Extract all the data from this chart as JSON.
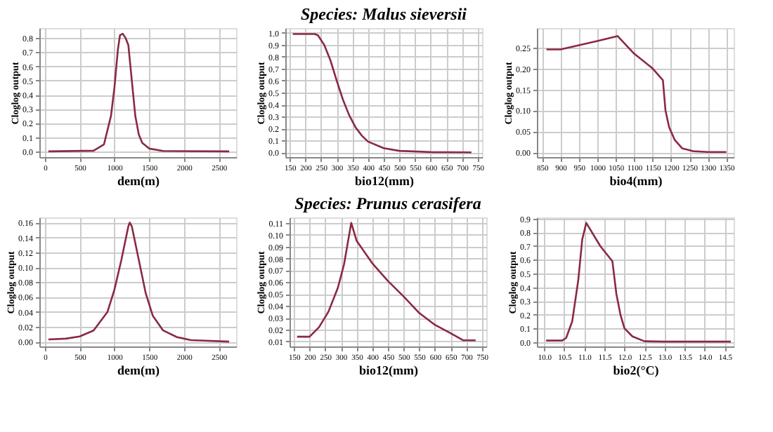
{
  "chart_data": [
    {
      "type": "line",
      "xlabel": "dem(m)",
      "ylabel": "Cloglog output",
      "grid": true,
      "x": [
        50,
        700,
        850,
        950,
        1000,
        1050,
        1080,
        1120,
        1160,
        1200,
        1250,
        1300,
        1350,
        1400,
        1500,
        1700,
        2650
      ],
      "series": [
        {
          "color": "#8b2942",
          "values": [
            0,
            0.005,
            0.05,
            0.25,
            0.45,
            0.72,
            0.82,
            0.83,
            0.8,
            0.75,
            0.5,
            0.25,
            0.12,
            0.06,
            0.02,
            0.003,
            0
          ]
        }
      ],
      "xlim": [
        -80,
        2750
      ],
      "ylim": [
        -0.04,
        0.87
      ],
      "xticks": [
        0,
        500,
        1000,
        1500,
        2000,
        2500
      ],
      "yticks": [
        {
          "value": 0,
          "label": "0.0"
        },
        0.1,
        0.2,
        0.3,
        0.4,
        0.5,
        0.6,
        0.7,
        0.8
      ]
    },
    {
      "type": "line",
      "title": "Species: Malus sieversii",
      "xlabel": "bio12(mm)",
      "ylabel": "Cloglog output",
      "grid": true,
      "x": [
        160,
        230,
        240,
        260,
        280,
        300,
        320,
        340,
        360,
        380,
        400,
        450,
        500,
        600,
        730
      ],
      "series": [
        {
          "color": "#8b2942",
          "values": [
            0.99,
            0.99,
            0.98,
            0.9,
            0.77,
            0.6,
            0.44,
            0.31,
            0.21,
            0.14,
            0.09,
            0.035,
            0.012,
            0.002,
            0
          ]
        }
      ],
      "xlim": [
        136,
        764
      ],
      "ylim": [
        -0.04,
        1.04
      ],
      "xticks": [
        150,
        200,
        250,
        300,
        350,
        400,
        450,
        500,
        550,
        600,
        650,
        700,
        750
      ],
      "yticks": [
        {
          "value": 0,
          "label": "0.0"
        },
        0.1,
        0.2,
        0.3,
        0.4,
        0.5,
        0.6,
        0.7,
        0.8,
        0.9,
        {
          "value": 1,
          "label": "1.0"
        }
      ]
    },
    {
      "type": "line",
      "xlabel": "bio4(mm)",
      "ylabel": "Cloglog output",
      "grid": true,
      "x": [
        862,
        900,
        1000,
        1055,
        1100,
        1150,
        1178,
        1185,
        1195,
        1210,
        1230,
        1260,
        1300,
        1350
      ],
      "series": [
        {
          "color": "#8b2942",
          "values": [
            0.245,
            0.245,
            0.265,
            0.277,
            0.235,
            0.2,
            0.172,
            0.1,
            0.06,
            0.03,
            0.01,
            0.003,
            0.001,
            0.001
          ]
        }
      ],
      "xlim": [
        836,
        1370
      ],
      "ylim": [
        -0.011,
        0.296
      ],
      "xticks": [
        850,
        900,
        950,
        1000,
        1050,
        1100,
        1150,
        1200,
        1250,
        1300,
        1350
      ],
      "yticks": [
        {
          "value": 0,
          "label": "0.00"
        },
        0.05,
        {
          "value": 0.1,
          "label": "0.10"
        },
        0.15,
        {
          "value": 0.2,
          "label": "0.20"
        },
        0.25
      ]
    },
    {
      "type": "line",
      "xlabel": "dem(m)",
      "ylabel": "Cloglog output",
      "grid": true,
      "x": [
        50,
        300,
        500,
        700,
        900,
        1000,
        1100,
        1200,
        1220,
        1250,
        1350,
        1450,
        1550,
        1700,
        1900,
        2100,
        2650
      ],
      "series": [
        {
          "color": "#8b2942",
          "values": [
            0.003,
            0.004,
            0.007,
            0.015,
            0.04,
            0.07,
            0.11,
            0.155,
            0.16,
            0.155,
            0.11,
            0.065,
            0.035,
            0.015,
            0.006,
            0.002,
            0
          ]
        }
      ],
      "xlim": [
        -80,
        2750
      ],
      "ylim": [
        -0.0065,
        0.167
      ],
      "xticks": [
        0,
        500,
        1000,
        1500,
        2000,
        2500
      ],
      "yticks": [
        {
          "value": 0,
          "label": "0.00"
        },
        0.02,
        0.04,
        0.06,
        0.08,
        {
          "value": 0.1,
          "label": "0.10"
        },
        0.12,
        0.14,
        0.16
      ]
    },
    {
      "type": "line",
      "title": "Species: Prunus cerasifera",
      "xlabel": "bio12(mm)",
      "ylabel": "Cloglog output",
      "grid": true,
      "x": [
        160,
        200,
        230,
        260,
        290,
        310,
        333,
        350,
        400,
        450,
        500,
        550,
        600,
        650,
        690,
        730
      ],
      "series": [
        {
          "color": "#8b2942",
          "values": [
            0.014,
            0.014,
            0.022,
            0.035,
            0.055,
            0.075,
            0.11,
            0.095,
            0.076,
            0.061,
            0.048,
            0.034,
            0.024,
            0.017,
            0.011,
            0.011
          ]
        }
      ],
      "xlim": [
        136,
        764
      ],
      "ylim": [
        0.0058,
        0.1146
      ],
      "xticks": [
        150,
        200,
        250,
        300,
        350,
        400,
        450,
        500,
        550,
        600,
        650,
        700,
        750
      ],
      "yticks": [
        0.01,
        0.02,
        0.03,
        0.04,
        0.05,
        0.06,
        0.07,
        0.08,
        0.09,
        {
          "value": 0.1,
          "label": "0.10"
        },
        0.11
      ]
    },
    {
      "type": "line",
      "xlabel": "bio2(°C)",
      "ylabel": "Cloglog output",
      "grid": true,
      "x": [
        10.05,
        10.45,
        10.55,
        10.7,
        10.85,
        10.95,
        11.05,
        11.4,
        11.7,
        11.8,
        11.9,
        12.0,
        12.2,
        12.5,
        13.0,
        14.65
      ],
      "series": [
        {
          "color": "#8b2942",
          "values": [
            0.01,
            0.01,
            0.03,
            0.15,
            0.45,
            0.75,
            0.87,
            0.7,
            0.59,
            0.35,
            0.2,
            0.1,
            0.04,
            0.005,
            0.002,
            0.002
          ]
        }
      ],
      "xlim": [
        9.82,
        14.72
      ],
      "ylim": [
        -0.033,
        0.91
      ],
      "xticks": [
        {
          "value": 10,
          "label": "10.0"
        },
        10.5,
        {
          "value": 11,
          "label": "11.0"
        },
        11.5,
        {
          "value": 12,
          "label": "12.0"
        },
        12.5,
        {
          "value": 13,
          "label": "13.0"
        },
        13.5,
        {
          "value": 14,
          "label": "14.0"
        },
        14.5
      ],
      "yticks": [
        {
          "value": 0,
          "label": "0.0"
        },
        0.1,
        0.2,
        0.3,
        0.4,
        0.5,
        0.6,
        0.7,
        0.8,
        0.9
      ]
    }
  ]
}
